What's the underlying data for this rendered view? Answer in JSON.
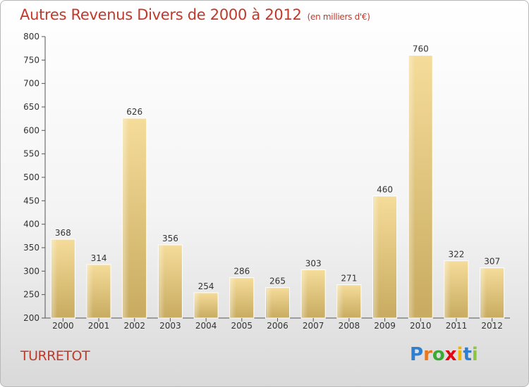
{
  "header": {
    "title": "Autres Revenus Divers de 2000 à 2012",
    "unit": "(en milliers d'€)"
  },
  "footer": {
    "town": "TURRETOT",
    "logo_letters": [
      {
        "ch": "P",
        "color": "#2f7fd0"
      },
      {
        "ch": "r",
        "color": "#e87722"
      },
      {
        "ch": "o",
        "color": "#3aa935"
      },
      {
        "ch": "x",
        "color": "#e30613"
      },
      {
        "ch": "i",
        "color": "#f2b600"
      },
      {
        "ch": "t",
        "color": "#2f7fd0"
      },
      {
        "ch": "i",
        "color": "#8cc63f"
      }
    ]
  },
  "chart_data": {
    "type": "bar",
    "title": "Autres Revenus Divers de 2000 à 2012",
    "subtitle": "(en milliers d'€)",
    "xlabel": "",
    "ylabel": "",
    "categories": [
      "2000",
      "2001",
      "2002",
      "2003",
      "2004",
      "2005",
      "2006",
      "2007",
      "2008",
      "2009",
      "2010",
      "2011",
      "2012"
    ],
    "values": [
      368,
      314,
      626,
      356,
      254,
      286,
      265,
      303,
      271,
      460,
      760,
      322,
      307
    ],
    "ylim": [
      200,
      800
    ],
    "yticks": [
      200,
      250,
      300,
      350,
      400,
      450,
      500,
      550,
      600,
      650,
      700,
      750,
      800
    ],
    "grid": false,
    "legend": "none",
    "bar_color": "#e9c97f",
    "axis_color": "#555555"
  }
}
